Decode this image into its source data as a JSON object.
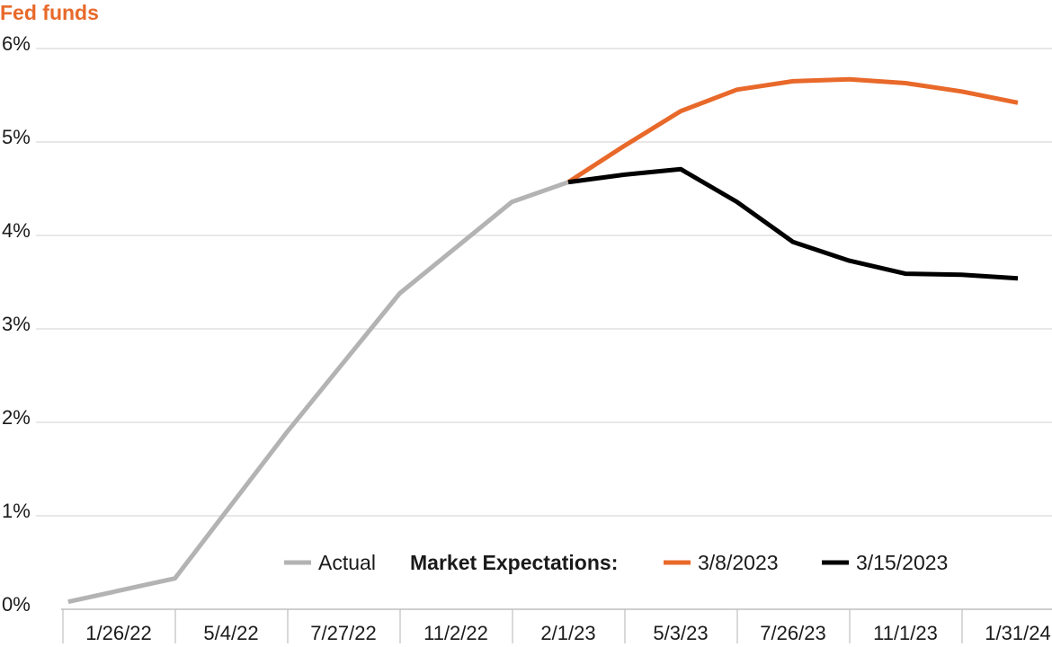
{
  "chart_data": {
    "type": "line",
    "title": "Fed funds",
    "xlabel": "",
    "ylabel": "",
    "ylim": [
      0,
      6
    ],
    "y_ticks": [
      "0%",
      "1%",
      "2%",
      "3%",
      "4%",
      "5%",
      "6%"
    ],
    "x_ticks": [
      "1/26/22",
      "5/4/22",
      "7/27/22",
      "11/2/22",
      "2/1/23",
      "5/3/23",
      "7/26/23",
      "11/1/23",
      "1/31/24"
    ],
    "grid": "horizontal",
    "legend_placement": "bottom-right",
    "legend_heading": "Market Expectations:",
    "series": [
      {
        "name": "Actual",
        "color": "#b3b3b3",
        "points": [
          [
            -0.45,
            0.08
          ],
          [
            0.5,
            0.33
          ],
          [
            1.5,
            1.9
          ],
          [
            2.5,
            3.38
          ],
          [
            3.5,
            4.36
          ],
          [
            4.0,
            4.57
          ]
        ]
      },
      {
        "name": "3/8/2023",
        "color": "#e8692a",
        "points": [
          [
            4.0,
            4.57
          ],
          [
            4.5,
            4.96
          ],
          [
            5.0,
            5.33
          ],
          [
            5.5,
            5.56
          ],
          [
            6.0,
            5.65
          ],
          [
            6.5,
            5.67
          ],
          [
            7.0,
            5.63
          ],
          [
            7.5,
            5.54
          ],
          [
            8.0,
            5.42
          ]
        ]
      },
      {
        "name": "3/15/2023",
        "color": "#000000",
        "points": [
          [
            4.0,
            4.57
          ],
          [
            4.5,
            4.65
          ],
          [
            5.0,
            4.71
          ],
          [
            5.5,
            4.36
          ],
          [
            6.0,
            3.93
          ],
          [
            6.5,
            3.73
          ],
          [
            7.0,
            3.59
          ],
          [
            7.5,
            3.58
          ],
          [
            8.0,
            3.54
          ]
        ]
      }
    ]
  }
}
